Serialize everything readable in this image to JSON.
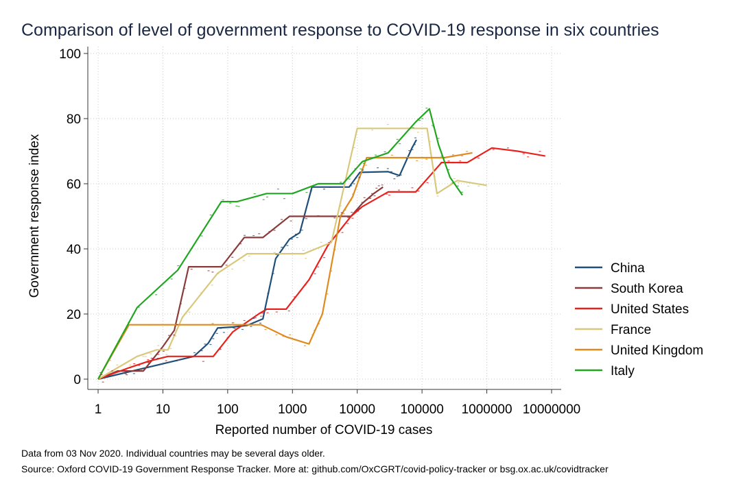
{
  "chart_data": {
    "type": "line",
    "title": "Comparison of level of government response to COVID-19 response in six countries",
    "xlabel": "Reported number of COVID-19 cases",
    "ylabel": "Government response index",
    "x_scale": "log",
    "xlim": [
      1,
      10000000
    ],
    "ylim": [
      0,
      100
    ],
    "x_ticks": [
      1,
      10,
      100,
      1000,
      10000,
      100000,
      1000000,
      10000000
    ],
    "x_tick_labels": [
      "1",
      "10",
      "100",
      "1000",
      "10000",
      "100000",
      "1000000",
      "10000000"
    ],
    "y_ticks": [
      0,
      20,
      40,
      60,
      80,
      100
    ],
    "y_tick_labels": [
      "0",
      "20",
      "40",
      "60",
      "80",
      "100"
    ],
    "grid": true,
    "legend_position": "right",
    "series": [
      {
        "name": "China",
        "color": "#1f4e79",
        "points": [
          [
            1,
            0
          ],
          [
            30,
            7
          ],
          [
            50,
            11
          ],
          [
            70,
            15.7
          ],
          [
            120,
            16
          ],
          [
            200,
            16.5
          ],
          [
            350,
            18.5
          ],
          [
            550,
            37
          ],
          [
            900,
            43
          ],
          [
            1300,
            45
          ],
          [
            2000,
            59
          ],
          [
            7500,
            59
          ],
          [
            11000,
            63.5
          ],
          [
            30000,
            63.7
          ],
          [
            45000,
            62.5
          ],
          [
            70000,
            71
          ],
          [
            82000,
            73.5
          ]
        ]
      },
      {
        "name": "South Korea",
        "color": "#8b3a3a",
        "points": [
          [
            1,
            0
          ],
          [
            2,
            2.5
          ],
          [
            5,
            2.5
          ],
          [
            10,
            10
          ],
          [
            15,
            15
          ],
          [
            25,
            34.5
          ],
          [
            80,
            34.5
          ],
          [
            180,
            43.5
          ],
          [
            350,
            43.5
          ],
          [
            900,
            50
          ],
          [
            4000,
            50
          ],
          [
            8000,
            50
          ],
          [
            12000,
            54
          ],
          [
            18000,
            57
          ],
          [
            25000,
            59
          ]
        ]
      },
      {
        "name": "United States",
        "color": "#e8211c",
        "points": [
          [
            1,
            0
          ],
          [
            3,
            3.5
          ],
          [
            6,
            5.5
          ],
          [
            12,
            7
          ],
          [
            60,
            7
          ],
          [
            120,
            14.5
          ],
          [
            300,
            20
          ],
          [
            400,
            21.5
          ],
          [
            800,
            21.5
          ],
          [
            1800,
            30.5
          ],
          [
            3500,
            41
          ],
          [
            8000,
            50
          ],
          [
            12000,
            53
          ],
          [
            30000,
            57.5
          ],
          [
            80000,
            57.5
          ],
          [
            200000,
            66.5
          ],
          [
            500000,
            66.5
          ],
          [
            1200000,
            71
          ],
          [
            3000000,
            70
          ],
          [
            8000000,
            68.5
          ]
        ]
      },
      {
        "name": "France",
        "color": "#d9c77a",
        "points": [
          [
            1,
            0
          ],
          [
            4,
            7
          ],
          [
            8,
            9
          ],
          [
            12,
            9
          ],
          [
            20,
            19
          ],
          [
            70,
            32.5
          ],
          [
            200,
            38.5
          ],
          [
            1500,
            38.5
          ],
          [
            4000,
            42
          ],
          [
            10000,
            77
          ],
          [
            120000,
            77
          ],
          [
            170000,
            57
          ],
          [
            350000,
            61
          ],
          [
            1000000,
            59.5
          ]
        ]
      },
      {
        "name": "United Kingdom",
        "color": "#e08a1e",
        "points": [
          [
            1,
            0
          ],
          [
            3,
            16.7
          ],
          [
            330,
            16.7
          ],
          [
            800,
            13
          ],
          [
            1800,
            10.8
          ],
          [
            2900,
            20
          ],
          [
            5500,
            50
          ],
          [
            8500,
            56
          ],
          [
            14000,
            68
          ],
          [
            220000,
            68
          ],
          [
            600000,
            69.5
          ]
        ]
      },
      {
        "name": "Italy",
        "color": "#20a620",
        "points": [
          [
            1,
            0
          ],
          [
            4,
            22
          ],
          [
            17,
            33.5
          ],
          [
            80,
            54.5
          ],
          [
            140,
            54.5
          ],
          [
            400,
            57
          ],
          [
            1000,
            57
          ],
          [
            2500,
            60
          ],
          [
            6000,
            60
          ],
          [
            12000,
            66.8
          ],
          [
            30000,
            69.5
          ],
          [
            80000,
            79
          ],
          [
            130000,
            83
          ],
          [
            180000,
            72
          ],
          [
            270000,
            62
          ],
          [
            420000,
            56.5
          ]
        ]
      }
    ],
    "notes": [
      "Data from 03 Nov 2020. Individual countries may be several days older.",
      "Source: Oxford COVID-19 Government Response Tracker. More at: github.com/OxCGRT/covid-policy-tracker or bsg.ox.ac.uk/covidtracker"
    ]
  }
}
